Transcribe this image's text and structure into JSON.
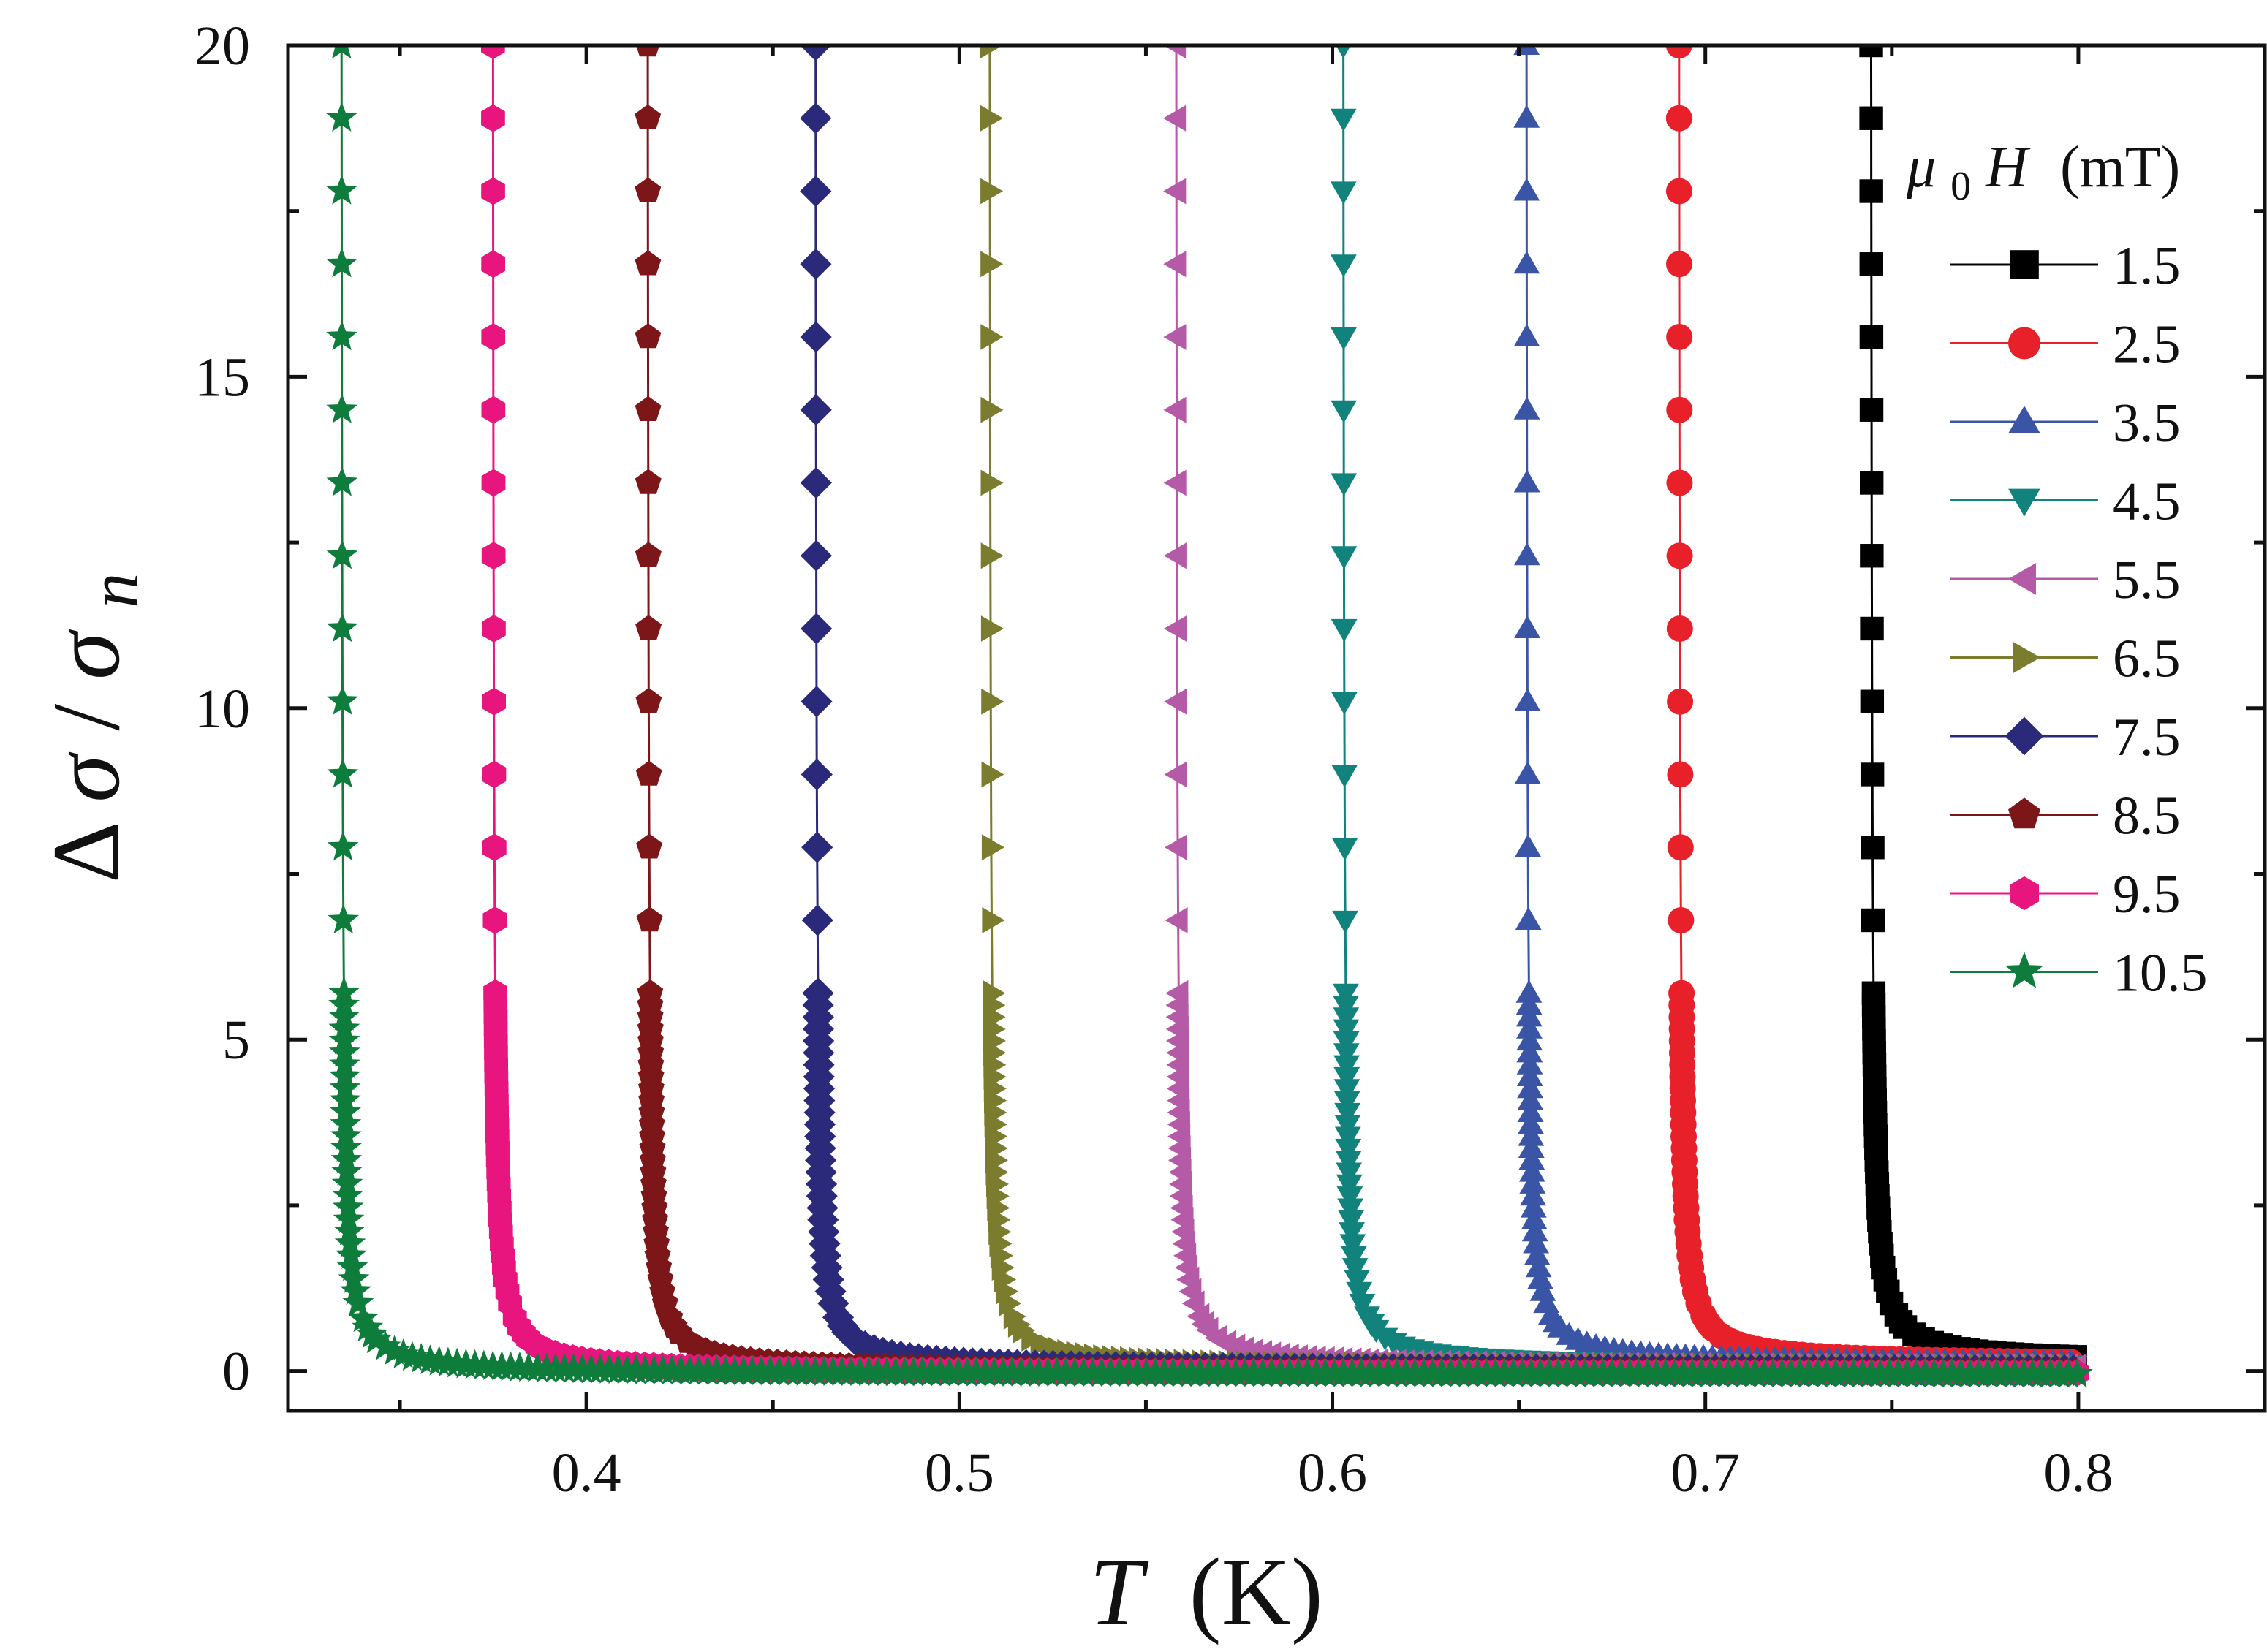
{
  "chart_data": {
    "type": "line",
    "title": "",
    "xlabel_var": "T",
    "xlabel_unit": "(K)",
    "ylabel": "Δσ/σn",
    "ylabel_parts": {
      "delta": "Δ",
      "sigma": "σ",
      "slash": "/",
      "sub": "n"
    },
    "xlim": [
      0.32,
      0.85
    ],
    "ylim": [
      -0.6,
      20
    ],
    "x_ticks": [
      0.4,
      0.5,
      0.6,
      0.7,
      0.8
    ],
    "x_tick_labels": [
      "0.4",
      "0.5",
      "0.6",
      "0.7",
      "0.8"
    ],
    "y_ticks": [
      0,
      5,
      10,
      15,
      20
    ],
    "y_tick_labels": [
      "0",
      "5",
      "10",
      "15",
      "20"
    ],
    "legend_title": {
      "mu": "μ",
      "sub": "0",
      "var": "H",
      "unit": "(mT)"
    },
    "legend_position": "top-right",
    "curve_model": "y = A / (T - T0) + c, with y capped at 20 (curves continue to T = 0.80 K near zero)",
    "series": [
      {
        "name": "1.5",
        "color": "#000000",
        "marker": "square",
        "T0": 0.7442,
        "A": 0.0051,
        "c": 0.12
      },
      {
        "name": "2.5",
        "color": "#e8202a",
        "marker": "circle",
        "T0": 0.6927,
        "A": 0.0051,
        "c": 0.09
      },
      {
        "name": "3.5",
        "color": "#3a55a6",
        "marker": "triangle-up",
        "T0": 0.6518,
        "A": 0.0051,
        "c": 0.1
      },
      {
        "name": "4.5",
        "color": "#11837c",
        "marker": "triangle-down",
        "T0": 0.6027,
        "A": 0.0051,
        "c": 0.06
      },
      {
        "name": "5.5",
        "color": "#b45aa6",
        "marker": "triangle-left",
        "T0": 0.5579,
        "A": 0.0051,
        "c": 0.05
      },
      {
        "name": "6.5",
        "color": "#7b7c2e",
        "marker": "triangle-right",
        "T0": 0.5079,
        "A": 0.0051,
        "c": 0.04
      },
      {
        "name": "7.5",
        "color": "#2b2a7a",
        "marker": "diamond",
        "T0": 0.4612,
        "A": 0.0051,
        "c": 0.0
      },
      {
        "name": "8.5",
        "color": "#7d1618",
        "marker": "pentagon",
        "T0": 0.4162,
        "A": 0.0051,
        "c": -0.02
      },
      {
        "name": "9.5",
        "color": "#e8157f",
        "marker": "hexagon",
        "T0": 0.3747,
        "A": 0.0051,
        "c": -0.04
      },
      {
        "name": "10.5",
        "color": "#0e7d3c",
        "marker": "star",
        "T0": 0.3341,
        "A": 0.0051,
        "c": -0.06
      }
    ]
  }
}
